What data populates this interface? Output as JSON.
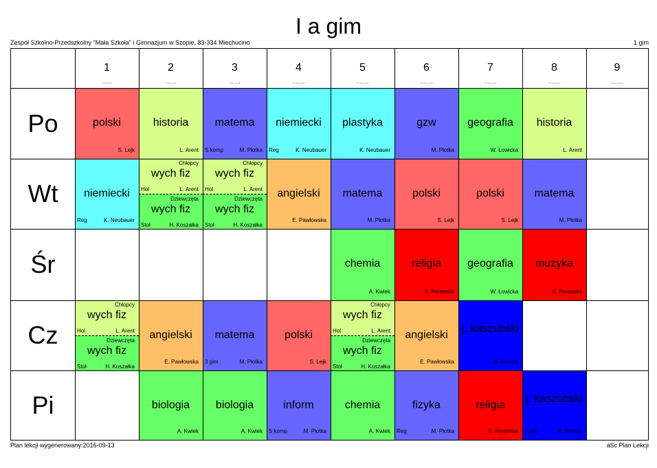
{
  "title": "I a gim",
  "school": "Zespół Szkolno-Przedszkolny \"Mała Szkoła\" i Gimnazjum w Szopie, 83-334 Miechucino",
  "class_code": "1 gim",
  "footer_left": "Plan lekcji wygenerowany:2016-09-13",
  "footer_right": "aSc Plan Lekcji",
  "periods": [
    {
      "num": "1",
      "time": "8:00-8:45"
    },
    {
      "num": "2",
      "time": "8:55-9:40"
    },
    {
      "num": "3",
      "time": "9:50-10:35"
    },
    {
      "num": "4",
      "time": "10:45-11:30"
    },
    {
      "num": "5",
      "time": "11:40-12:25"
    },
    {
      "num": "6",
      "time": "12:35-13:20"
    },
    {
      "num": "7",
      "time": "13:30-14:15"
    },
    {
      "num": "8",
      "time": "14:25-15:10"
    },
    {
      "num": "9",
      "time": "15:20-16:05"
    }
  ],
  "days": [
    "Po",
    "Wt",
    "Śr",
    "Cz",
    "Pi"
  ],
  "lessons": [
    {
      "day": 0,
      "period": 0,
      "color": "#ff6666",
      "subject": "polski",
      "teacher": "S. Lejk",
      "room": ""
    },
    {
      "day": 0,
      "period": 1,
      "color": "#d6ff8c",
      "subject": "historia",
      "teacher": "L. Arent",
      "room": ""
    },
    {
      "day": 0,
      "period": 2,
      "color": "#6666ff",
      "subject": "matema",
      "teacher": "M. Płotka",
      "room": "S komp"
    },
    {
      "day": 0,
      "period": 3,
      "color": "#66ffff",
      "subject": "niemiecki",
      "teacher": "K. Neubauer",
      "room": "Reg"
    },
    {
      "day": 0,
      "period": 4,
      "color": "#66ffff",
      "subject": "plastyka",
      "teacher": "K. Neubauer",
      "room": ""
    },
    {
      "day": 0,
      "period": 5,
      "color": "#6666ff",
      "subject": "gzw",
      "teacher": "M. Płotka",
      "room": ""
    },
    {
      "day": 0,
      "period": 6,
      "color": "#66ff66",
      "subject": "geografia",
      "teacher": "W. Łowicka",
      "room": ""
    },
    {
      "day": 0,
      "period": 7,
      "color": "#d6ff8c",
      "subject": "historia",
      "teacher": "L. Arent",
      "room": ""
    },
    {
      "day": 1,
      "period": 0,
      "color": "#66ffff",
      "subject": "niemiecki",
      "teacher": "K. Neubauer",
      "room": "Reg"
    },
    {
      "day": 1,
      "period": 1,
      "color": "#d6ff8c",
      "split": true,
      "top": {
        "group": "Chłopcy",
        "subject": "wych fiz",
        "teacher": "L. Arent",
        "room": "Hol"
      },
      "bottom": {
        "group": "Dziewczęta",
        "subject": "wych fiz",
        "teacher": "H. Koszałka",
        "room": "Stoł",
        "color": "#66ff66"
      }
    },
    {
      "day": 1,
      "period": 2,
      "color": "#d6ff8c",
      "split": true,
      "top": {
        "group": "Chłopcy",
        "subject": "wych fiz",
        "teacher": "L. Arent",
        "room": "Hol"
      },
      "bottom": {
        "group": "Dziewczęta",
        "subject": "wych fiz",
        "teacher": "H. Koszałka",
        "room": "Stoł",
        "color": "#66ff66"
      }
    },
    {
      "day": 1,
      "period": 3,
      "color": "#ffbf66",
      "subject": "angielski",
      "teacher": "E. Pawłowska",
      "room": ""
    },
    {
      "day": 1,
      "period": 4,
      "color": "#6666ff",
      "subject": "matema",
      "teacher": "M. Płotka",
      "room": ""
    },
    {
      "day": 1,
      "period": 5,
      "color": "#ff6666",
      "subject": "polski",
      "teacher": "S. Lejk",
      "room": ""
    },
    {
      "day": 1,
      "period": 6,
      "color": "#ff6666",
      "subject": "polski",
      "teacher": "S. Lejk",
      "room": ""
    },
    {
      "day": 1,
      "period": 7,
      "color": "#6666ff",
      "subject": "matema",
      "teacher": "M. Płotka",
      "room": ""
    },
    {
      "day": 2,
      "period": 4,
      "color": "#66ff66",
      "subject": "chemia",
      "teacher": "A. Kwiek",
      "room": ""
    },
    {
      "day": 2,
      "period": 5,
      "color": "#ff0000",
      "subject": "religia",
      "teacher": "S. Porębska",
      "room": ""
    },
    {
      "day": 2,
      "period": 6,
      "color": "#66ff66",
      "subject": "geografia",
      "teacher": "W. Łowicka",
      "room": ""
    },
    {
      "day": 2,
      "period": 7,
      "color": "#ff0000",
      "subject": "muzyka",
      "teacher": "S. Porębska",
      "room": ""
    },
    {
      "day": 3,
      "period": 0,
      "color": "#d6ff8c",
      "split": true,
      "top": {
        "group": "Chłopcy",
        "subject": "wych fiz",
        "teacher": "L. Arent",
        "room": "Hol"
      },
      "bottom": {
        "group": "Dziewczęta",
        "subject": "wych fiz",
        "teacher": "H. Koszałka",
        "room": "Stoł",
        "color": "#66ff66"
      }
    },
    {
      "day": 3,
      "period": 1,
      "color": "#ffbf66",
      "subject": "angielski",
      "teacher": "E. Pawłowska",
      "room": ""
    },
    {
      "day": 3,
      "period": 2,
      "color": "#6666ff",
      "subject": "matema",
      "teacher": "M. Płotka",
      "room": "3 gim"
    },
    {
      "day": 3,
      "period": 3,
      "color": "#ff6666",
      "subject": "polski",
      "teacher": "S. Lejk",
      "room": ""
    },
    {
      "day": 3,
      "period": 4,
      "color": "#d6ff8c",
      "split": true,
      "top": {
        "group": "Chłopcy",
        "subject": "wych fiz",
        "teacher": "L. Arent",
        "room": "Hol"
      },
      "bottom": {
        "group": "Dziewczęta",
        "subject": "wych fiz",
        "teacher": "H. Koszałka",
        "room": "Stoł",
        "color": "#66ff66"
      }
    },
    {
      "day": 3,
      "period": 5,
      "color": "#ffbf66",
      "subject": "angielski",
      "teacher": "E. Pawłowska",
      "room": ""
    },
    {
      "day": 3,
      "period": 6,
      "color": "#0000ff",
      "subject": "j. kaszubski",
      "teacher": "M. Romza",
      "room": "",
      "wrap": true
    },
    {
      "day": 4,
      "period": 1,
      "color": "#66ff66",
      "subject": "biologia",
      "teacher": "A. Kwiek",
      "room": ""
    },
    {
      "day": 4,
      "period": 2,
      "color": "#66ff66",
      "subject": "biologia",
      "teacher": "A. Kwiek",
      "room": ""
    },
    {
      "day": 4,
      "period": 3,
      "color": "#6666ff",
      "subject": "inform",
      "teacher": "M. Płotka",
      "room": "S komp"
    },
    {
      "day": 4,
      "period": 4,
      "color": "#66ff66",
      "subject": "chemia",
      "teacher": "A. Kwiek",
      "room": ""
    },
    {
      "day": 4,
      "period": 5,
      "color": "#6666ff",
      "subject": "fizyka",
      "teacher": "M. Płotka",
      "room": "Reg"
    },
    {
      "day": 4,
      "period": 6,
      "color": "#ff0000",
      "subject": "religia",
      "teacher": "S. Porębska",
      "room": ""
    },
    {
      "day": 4,
      "period": 7,
      "color": "#0000ff",
      "subject": "j. kaszubski",
      "teacher": "M. Romza",
      "room": "1 gim",
      "wrap": true
    }
  ]
}
